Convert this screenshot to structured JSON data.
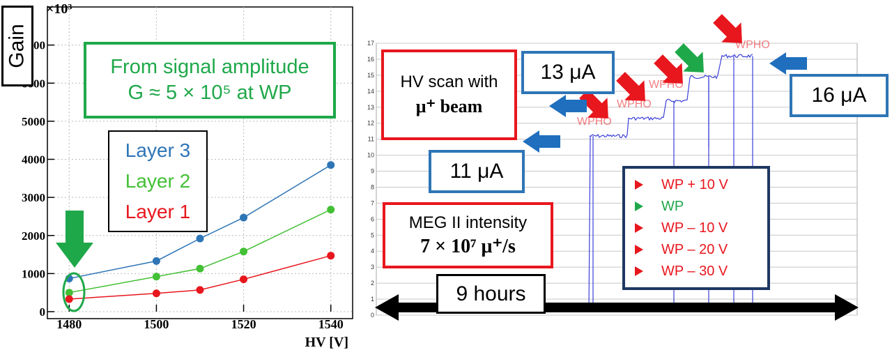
{
  "left_chart": {
    "exponent_label": "×10³",
    "gain_label": "Gain",
    "xlabel": "HV [V]",
    "x_ticks": [
      "1480",
      "1500",
      "1520",
      "1540"
    ],
    "y_ticks": [
      "0",
      "1000",
      "2000",
      "3000",
      "4000",
      "5000",
      "6000",
      "7000"
    ],
    "annotation_line1": "From signal amplitude",
    "annotation_line2": "G ≈ 5 × 10⁵ at WP",
    "legend": [
      {
        "label": "Layer 3",
        "color": "#2e75b6"
      },
      {
        "label": "Layer 2",
        "color": "#43c035"
      },
      {
        "label": "Layer 1",
        "color": "#e8161d"
      }
    ]
  },
  "chart_data": [
    {
      "type": "line",
      "xlabel": "HV [V]",
      "ylabel": "Gain",
      "xlim": [
        1475,
        1545
      ],
      "ylim": [
        0,
        8000
      ],
      "x": [
        1480,
        1500,
        1510,
        1520,
        1540
      ],
      "series": [
        {
          "name": "Layer 3",
          "color": "#2e75b6",
          "values": [
            870,
            1330,
            1920,
            2470,
            3850
          ]
        },
        {
          "name": "Layer 2",
          "color": "#43c035",
          "values": [
            500,
            920,
            1130,
            1580,
            2680
          ]
        },
        {
          "name": "Layer 1",
          "color": "#e8161d",
          "values": [
            330,
            480,
            570,
            850,
            1470
          ]
        }
      ]
    },
    {
      "type": "line",
      "ylim": [
        0,
        17
      ],
      "y_ticks": [
        "0",
        "1",
        "2",
        "3",
        "4",
        "5",
        "6",
        "7",
        "8",
        "9",
        "10",
        "11",
        "12",
        "13",
        "14",
        "15",
        "16",
        "17"
      ],
      "steps": [
        {
          "label": "WP – 30 V",
          "value": 11.2
        },
        {
          "label": "WP – 20 V",
          "value": 12.3
        },
        {
          "label": "WP – 10 V",
          "value": 13.4
        },
        {
          "label": "WP",
          "value": 14.9
        },
        {
          "label": "WP + 10 V",
          "value": 16.2
        }
      ],
      "step_overlay_text": "WPHO",
      "line_color": "#3a3fd8"
    }
  ],
  "right_panel": {
    "hv_scan_line1": "HV scan with",
    "hv_scan_line2": "μ⁺ beam",
    "label_13uA": "13 μA",
    "label_16uA": "16 μA",
    "label_11uA": "11 μA",
    "meg_line1": "MEG II intensity",
    "meg_line2": "7 × 10⁷ μ⁺/s",
    "duration": "9 hours",
    "legend": [
      {
        "label": "WP + 10 V",
        "color": "#e8161d"
      },
      {
        "label": "WP",
        "color": "#1fa84a"
      },
      {
        "label": "WP – 10 V",
        "color": "#e8161d"
      },
      {
        "label": "WP – 20 V",
        "color": "#e8161d"
      },
      {
        "label": "WP – 30 V",
        "color": "#e8161d"
      }
    ]
  }
}
